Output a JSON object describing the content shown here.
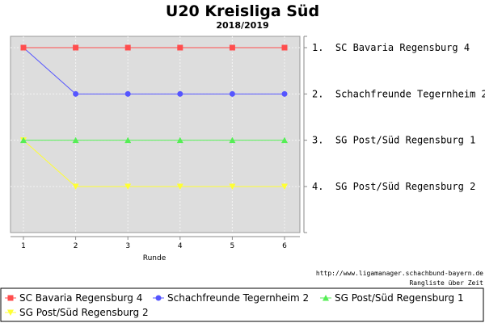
{
  "chart_data": {
    "type": "line",
    "title": "U20 Kreisliga Süd",
    "subtitle": "2018/2019",
    "xlabel": "Runde",
    "x": [
      1,
      2,
      3,
      4,
      5,
      6
    ],
    "ylim": [
      1,
      4
    ],
    "y_inverted": true,
    "grid": true,
    "rank_labels": [
      "1.  SC Bavaria Regensburg 4",
      "2.  Schachfreunde Tegernheim 2",
      "3.  SG Post/Süd Regensburg 1",
      "4.  SG Post/Süd Regensburg 2"
    ],
    "series": [
      {
        "name": "SC Bavaria Regensburg 4",
        "values": [
          1,
          1,
          1,
          1,
          1,
          1
        ],
        "color": "#ff4d4d",
        "marker": "square"
      },
      {
        "name": "Schachfreunde Tegernheim 2",
        "values": [
          1,
          2,
          2,
          2,
          2,
          2
        ],
        "color": "#5555ff",
        "marker": "circle"
      },
      {
        "name": "SG Post/Süd Regensburg 1",
        "values": [
          3,
          3,
          3,
          3,
          3,
          3
        ],
        "color": "#55ee55",
        "marker": "triangle"
      },
      {
        "name": "SG Post/Süd Regensburg 2",
        "values": [
          3,
          4,
          4,
          4,
          4,
          4
        ],
        "color": "#ffff33",
        "marker": "triangle-down"
      }
    ],
    "legend_position": "bottom",
    "credit_url": "http://www.ligamanager.schachbund-bayern.de",
    "credit_text": "Rangliste über Zeit",
    "plot_background": "#dddddd"
  }
}
